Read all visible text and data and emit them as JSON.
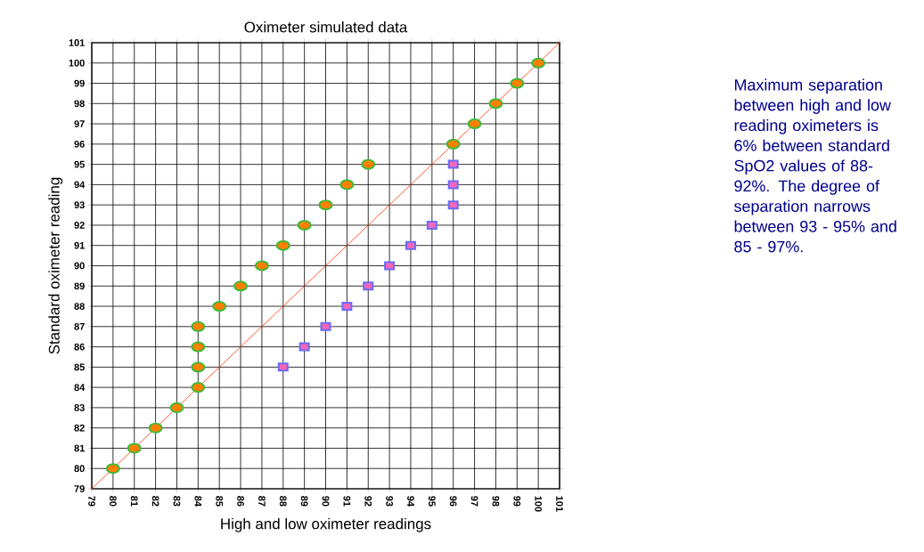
{
  "chart_data": {
    "type": "scatter",
    "title": "Oximeter simulated data",
    "xlabel": "High and low oximeter readings",
    "ylabel": "Standard oximeter reading",
    "xlim": [
      79,
      101
    ],
    "ylim": [
      79,
      101
    ],
    "xticks": [
      79,
      80,
      81,
      82,
      83,
      84,
      85,
      86,
      87,
      88,
      89,
      90,
      91,
      92,
      93,
      94,
      95,
      96,
      97,
      98,
      99,
      100,
      101
    ],
    "yticks": [
      79,
      80,
      81,
      82,
      83,
      84,
      85,
      86,
      87,
      88,
      89,
      90,
      91,
      92,
      93,
      94,
      95,
      96,
      97,
      98,
      99,
      100,
      101
    ],
    "grid": true,
    "series": [
      {
        "marker": "circle",
        "color": "#3cb93c",
        "x": [
          80,
          81,
          82,
          83,
          84,
          84,
          84,
          84,
          85,
          86,
          87,
          88,
          89,
          90,
          91,
          92,
          96,
          97,
          98,
          99,
          100
        ],
        "values": [
          80,
          81,
          82,
          83,
          84,
          85,
          86,
          87,
          88,
          89,
          90,
          91,
          92,
          93,
          94,
          95,
          96,
          97,
          98,
          99,
          100
        ]
      },
      {
        "marker": "square",
        "color": "#6b6bf5",
        "x": [
          88,
          89,
          90,
          91,
          92,
          93,
          94,
          95,
          96,
          96,
          96
        ],
        "values": [
          85,
          86,
          87,
          88,
          89,
          90,
          91,
          92,
          93,
          94,
          95
        ]
      },
      {
        "type": "line",
        "marker": "none",
        "color": "#ff3300",
        "x": [
          79,
          101
        ],
        "values": [
          79,
          101
        ]
      }
    ],
    "annotations": [
      "Maximum separation between high and low reading oximeters is 6% between standard SpO2 values of 88-92%. The degree of separation narrows between 93 - 95% and 85 - 97%."
    ]
  }
}
